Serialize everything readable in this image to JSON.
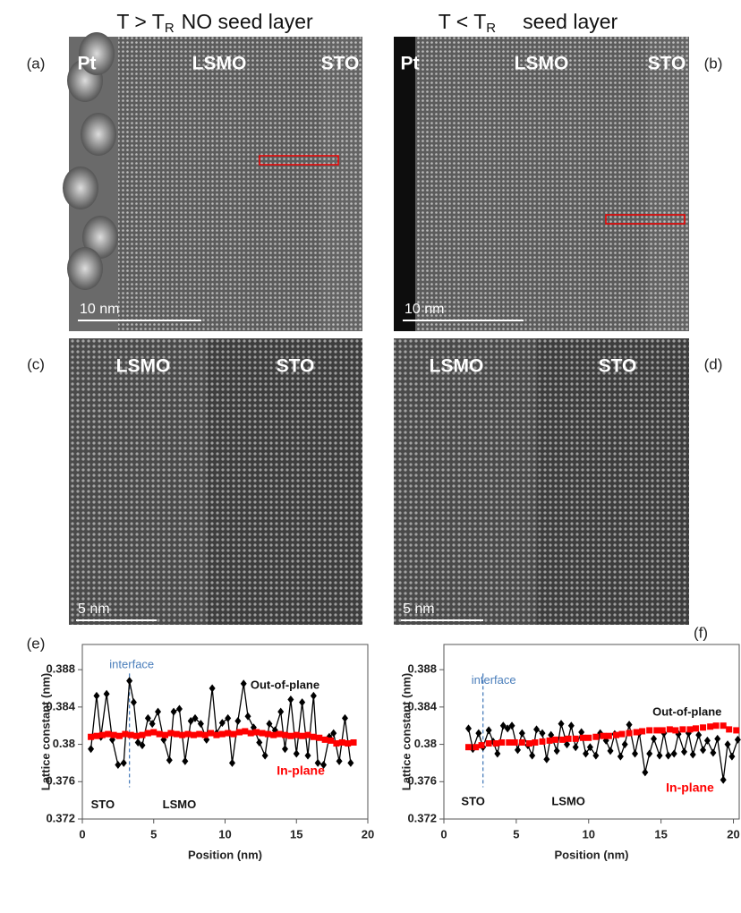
{
  "panels": [
    {
      "label": "(a)",
      "header": {
        "pre": "T > T",
        "sub": "R",
        "post": "NO seed layer"
      },
      "regions": [
        "Pt",
        "LSMO",
        "STO"
      ],
      "scale_bar": "10 nm"
    },
    {
      "label": "(b)",
      "header": {
        "pre": "T < T",
        "sub": "R",
        "post": "seed layer"
      },
      "regions": [
        "Pt",
        "LSMO",
        "STO"
      ],
      "scale_bar": "10 nm"
    },
    {
      "label": "(c)",
      "regions": [
        "LSMO",
        "STO"
      ],
      "scale_bar": "5 nm"
    },
    {
      "label": "(d)",
      "regions": [
        "LSMO",
        "STO"
      ],
      "scale_bar": "5 nm"
    }
  ],
  "chart_data": [
    {
      "type": "line",
      "panel": "(e)",
      "xlabel": "Position (nm)",
      "ylabel": "Lattice constant (nm)",
      "xlim": [
        0,
        20
      ],
      "ylim": [
        0.372,
        0.3907
      ],
      "xticks": [
        0,
        5,
        10,
        15,
        20
      ],
      "yticks": [
        0.372,
        0.376,
        0.38,
        0.384,
        0.388
      ],
      "annotations": [
        "interface",
        "STO",
        "LSMO"
      ],
      "series": [
        {
          "name": "Out-of-plane",
          "color": "#000000",
          "marker": "diamond",
          "x": [
            0.6,
            1.0,
            1.3,
            1.7,
            2.1,
            2.5,
            2.9,
            3.3,
            3.6,
            3.9,
            4.2,
            4.6,
            4.9,
            5.3,
            5.7,
            6.1,
            6.4,
            6.8,
            7.2,
            7.6,
            7.9,
            8.3,
            8.7,
            9.1,
            9.4,
            9.8,
            10.2,
            10.5,
            10.9,
            11.3,
            11.6,
            12.0,
            12.4,
            12.8,
            13.1,
            13.5,
            13.9,
            14.2,
            14.6,
            15.0,
            15.4,
            15.8,
            16.2,
            16.5,
            16.9,
            17.3,
            17.6,
            18.0,
            18.4,
            18.8
          ],
          "values": [
            0.3795,
            0.3852,
            0.3808,
            0.3854,
            0.3805,
            0.3778,
            0.378,
            0.3868,
            0.3845,
            0.3802,
            0.3799,
            0.3828,
            0.3822,
            0.3835,
            0.3805,
            0.3783,
            0.3835,
            0.3838,
            0.3782,
            0.3825,
            0.3828,
            0.3822,
            0.3805,
            0.386,
            0.3812,
            0.3823,
            0.3828,
            0.378,
            0.3825,
            0.3865,
            0.383,
            0.3818,
            0.3802,
            0.3788,
            0.3822,
            0.3815,
            0.3835,
            0.3795,
            0.3848,
            0.379,
            0.3845,
            0.3788,
            0.3852,
            0.378,
            0.3778,
            0.3808,
            0.3812,
            0.3782,
            0.3828,
            0.378
          ]
        },
        {
          "name": "In-plane",
          "color": "#ff0000",
          "marker": "square",
          "x": [
            0.6,
            1.0,
            1.4,
            1.8,
            2.2,
            2.6,
            3.0,
            3.4,
            3.8,
            4.2,
            4.6,
            5.0,
            5.4,
            5.8,
            6.2,
            6.6,
            7.0,
            7.4,
            7.8,
            8.2,
            8.6,
            9.0,
            9.4,
            9.8,
            10.2,
            10.6,
            11.0,
            11.4,
            11.8,
            12.2,
            12.6,
            13.0,
            13.4,
            13.8,
            14.2,
            14.6,
            15.0,
            15.4,
            15.8,
            16.2,
            16.6,
            17.0,
            17.4,
            17.8,
            18.2,
            18.6,
            19.0
          ],
          "values": [
            0.3808,
            0.3809,
            0.381,
            0.3811,
            0.381,
            0.3809,
            0.3811,
            0.381,
            0.3809,
            0.381,
            0.3812,
            0.3813,
            0.3811,
            0.381,
            0.3812,
            0.3811,
            0.381,
            0.3811,
            0.381,
            0.3811,
            0.381,
            0.3812,
            0.381,
            0.3811,
            0.3812,
            0.3811,
            0.3813,
            0.3814,
            0.3812,
            0.3813,
            0.3812,
            0.3811,
            0.381,
            0.3811,
            0.381,
            0.3809,
            0.381,
            0.3809,
            0.381,
            0.3808,
            0.3807,
            0.3805,
            0.3804,
            0.3801,
            0.3802,
            0.3801,
            0.3802
          ]
        }
      ]
    },
    {
      "type": "line",
      "panel": "(f)",
      "xlabel": "Position (nm)",
      "ylabel": "Lattice constant (nm)",
      "xlim": [
        0,
        20.4
      ],
      "ylim": [
        0.372,
        0.3907
      ],
      "xticks": [
        0,
        5,
        10,
        15,
        20
      ],
      "yticks": [
        0.372,
        0.376,
        0.38,
        0.384,
        0.388
      ],
      "annotations": [
        "interface",
        "STO",
        "LSMO"
      ],
      "series": [
        {
          "name": "Out-of-plane",
          "color": "#000000",
          "marker": "diamond",
          "x": [
            1.7,
            2.0,
            2.4,
            2.7,
            3.1,
            3.4,
            3.7,
            4.1,
            4.4,
            4.7,
            5.1,
            5.4,
            5.8,
            6.1,
            6.4,
            6.8,
            7.1,
            7.4,
            7.8,
            8.1,
            8.5,
            8.8,
            9.1,
            9.5,
            9.8,
            10.1,
            10.5,
            10.8,
            11.2,
            11.5,
            11.8,
            12.2,
            12.5,
            12.8,
            13.2,
            13.5,
            13.9,
            14.2,
            14.5,
            14.9,
            15.2,
            15.5,
            15.9,
            16.2,
            16.6,
            16.9,
            17.2,
            17.6,
            17.9,
            18.2,
            18.6,
            18.9,
            19.3,
            19.6,
            19.9,
            20.3
          ],
          "values": [
            0.3817,
            0.3795,
            0.3812,
            0.3797,
            0.3815,
            0.3803,
            0.379,
            0.382,
            0.3817,
            0.382,
            0.3794,
            0.3812,
            0.3799,
            0.3788,
            0.3816,
            0.3812,
            0.3784,
            0.381,
            0.3793,
            0.3822,
            0.38,
            0.382,
            0.3797,
            0.3813,
            0.379,
            0.3797,
            0.3788,
            0.3812,
            0.3804,
            0.3793,
            0.3811,
            0.3787,
            0.38,
            0.3821,
            0.379,
            0.3812,
            0.377,
            0.379,
            0.3806,
            0.3788,
            0.3812,
            0.3788,
            0.379,
            0.3811,
            0.3792,
            0.3812,
            0.3789,
            0.381,
            0.3794,
            0.3804,
            0.3791,
            0.3806,
            0.3762,
            0.38,
            0.3787,
            0.3805
          ]
        },
        {
          "name": "In-plane",
          "color": "#ff0000",
          "marker": "square",
          "x": [
            1.7,
            2.2,
            2.6,
            3.1,
            3.6,
            4.0,
            4.5,
            4.9,
            5.4,
            5.9,
            6.3,
            6.8,
            7.3,
            7.7,
            8.2,
            8.6,
            9.1,
            9.6,
            10.0,
            10.5,
            11.0,
            11.4,
            11.9,
            12.3,
            12.8,
            13.3,
            13.7,
            14.2,
            14.7,
            15.1,
            15.6,
            16.0,
            16.5,
            17.0,
            17.4,
            17.9,
            18.4,
            18.8,
            19.3,
            19.7,
            20.2
          ],
          "values": [
            0.3797,
            0.3797,
            0.3799,
            0.3801,
            0.3801,
            0.3802,
            0.3802,
            0.3802,
            0.3802,
            0.3801,
            0.3802,
            0.3803,
            0.3804,
            0.3805,
            0.3805,
            0.3806,
            0.3806,
            0.3807,
            0.3807,
            0.3808,
            0.3809,
            0.3809,
            0.381,
            0.3811,
            0.3812,
            0.3813,
            0.3814,
            0.3815,
            0.3815,
            0.3815,
            0.3816,
            0.3815,
            0.3816,
            0.3816,
            0.3817,
            0.3818,
            0.3819,
            0.382,
            0.382,
            0.3816,
            0.3815
          ]
        }
      ]
    }
  ]
}
